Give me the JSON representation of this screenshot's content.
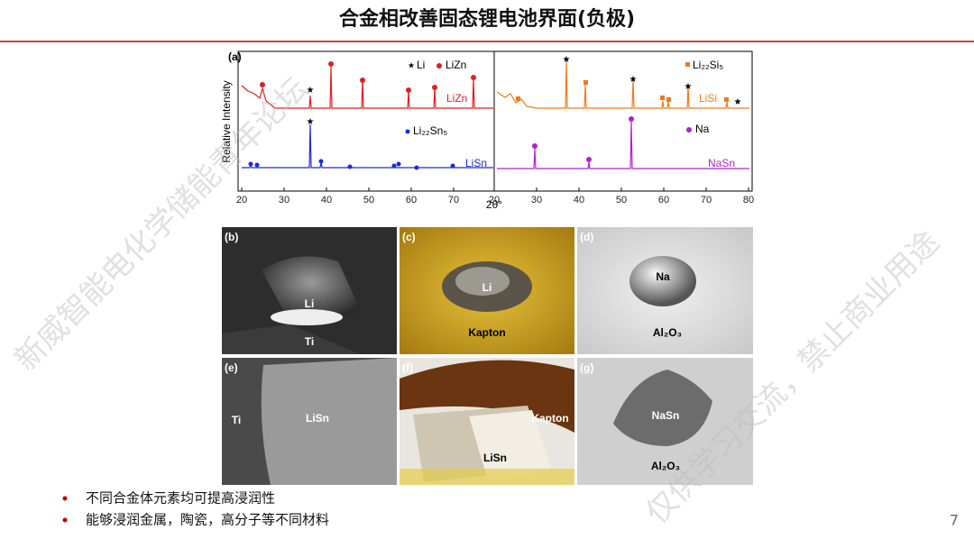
{
  "header": {
    "title": "合金相改善固态锂电池界面(负极)"
  },
  "figure": {
    "xrd": {
      "panel_label": "(a)",
      "y_label": "Relative Intensity",
      "x_label": "2θ°",
      "left_ticks": [
        20,
        30,
        40,
        50,
        60,
        70
      ],
      "right_ticks": [
        20,
        30,
        40,
        50,
        60,
        70,
        80
      ],
      "legends": {
        "li": "Li",
        "lizn": "LiZn",
        "li22sn5": "Li₂₂Sn₅",
        "li22si5": "Li₂₂Si₅",
        "na": "Na"
      },
      "trace_labels": {
        "lizn": "LiZn",
        "lisn": "LiSn",
        "lisi": "LiSi",
        "nasn": "NaSn"
      }
    },
    "photos": [
      {
        "panel": "(b)",
        "labels": [
          "Li",
          "Ti"
        ]
      },
      {
        "panel": "(c)",
        "labels": [
          "Li",
          "Kapton"
        ]
      },
      {
        "panel": "(d)",
        "labels": [
          "Na",
          "Al₂O₃"
        ]
      },
      {
        "panel": "(e)",
        "labels": [
          "Ti",
          "LiSn"
        ]
      },
      {
        "panel": "(f)",
        "labels": [
          "Kapton",
          "LiSn"
        ]
      },
      {
        "panel": "(g)",
        "labels": [
          "NaSn",
          "Al₂O₃"
        ]
      }
    ]
  },
  "bullets": [
    "不同合金体元素均可提高浸润性",
    "能够浸润金属，陶瓷，高分子等不同材料"
  ],
  "page_number": "7",
  "watermarks": [
    "新威智能电化学储能青年论坛",
    "仅供学习交流，禁止商业用途"
  ]
}
